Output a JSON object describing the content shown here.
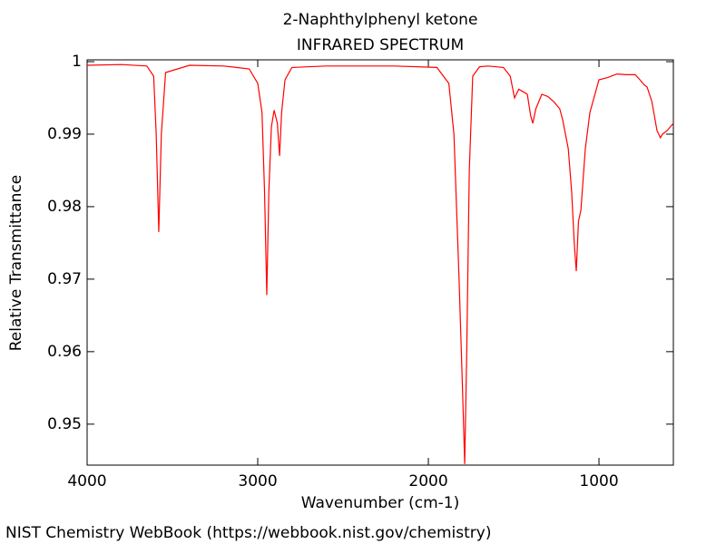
{
  "chart_data": {
    "type": "line",
    "title": "2-Naphthylphenyl ketone",
    "subtitle": "INFRARED SPECTRUM",
    "x_label": "Wavenumber (cm-1)",
    "y_label": "Relative Transmittance",
    "footer": "NIST Chemistry WebBook (https://webbook.nist.gov/chemistry)",
    "xlim": [
      4000,
      564
    ],
    "ylim": [
      0.94435,
      1.00025
    ],
    "xticks": [
      4000,
      3000,
      2000,
      1000
    ],
    "yticks": [
      1,
      0.99,
      0.98,
      0.97,
      0.96,
      0.95
    ],
    "color": "#ff0000",
    "x": [
      4000,
      3800,
      3650,
      3610,
      3595,
      3580,
      3565,
      3540,
      3400,
      3200,
      3050,
      3000,
      2975,
      2960,
      2947,
      2935,
      2920,
      2904,
      2885,
      2872,
      2860,
      2840,
      2800,
      2600,
      2200,
      1950,
      1880,
      1850,
      1820,
      1800,
      1787,
      1775,
      1760,
      1740,
      1700,
      1650,
      1560,
      1520,
      1495,
      1470,
      1441,
      1420,
      1400,
      1388,
      1370,
      1335,
      1300,
      1266,
      1230,
      1213,
      1180,
      1160,
      1145,
      1133,
      1120,
      1106,
      1080,
      1053,
      1000,
      950,
      894,
      840,
      787,
      760,
      735,
      718,
      690,
      660,
      640,
      628,
      600,
      564
    ],
    "values": [
      0.9995,
      0.9996,
      0.9994,
      0.998,
      0.99,
      0.9765,
      0.99,
      0.9985,
      0.9995,
      0.9994,
      0.999,
      0.997,
      0.993,
      0.982,
      0.9678,
      0.982,
      0.991,
      0.9933,
      0.9915,
      0.987,
      0.993,
      0.9975,
      0.9992,
      0.9994,
      0.9994,
      0.9992,
      0.997,
      0.99,
      0.97,
      0.955,
      0.9445,
      0.96,
      0.985,
      0.998,
      0.9993,
      0.9994,
      0.9992,
      0.998,
      0.995,
      0.9962,
      0.9958,
      0.9955,
      0.9925,
      0.9915,
      0.9935,
      0.9955,
      0.9952,
      0.9945,
      0.9935,
      0.992,
      0.988,
      0.982,
      0.975,
      0.9711,
      0.978,
      0.9795,
      0.988,
      0.993,
      0.9975,
      0.9978,
      0.9983,
      0.9982,
      0.9982,
      0.9975,
      0.9968,
      0.9965,
      0.9945,
      0.9905,
      0.9895,
      0.99,
      0.9905,
      0.9915
    ]
  }
}
